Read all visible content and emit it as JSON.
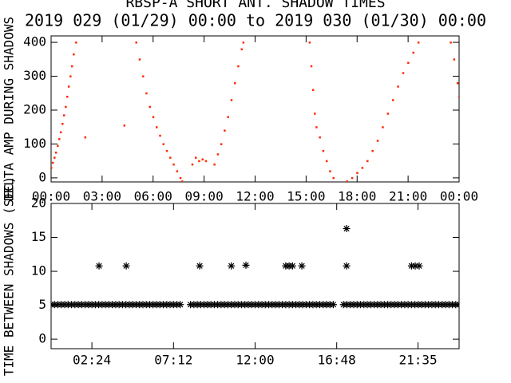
{
  "chart_data": [
    {
      "type": "scatter",
      "marker": "dot",
      "title": "RBSP-A SHORT ANT. SHADOW TIMES",
      "subtitle": "2019 029 (01/29) 00:00 to 2019 030 (01/30) 00:00",
      "ylabel": "DELTA AMP DURING SHADOWS",
      "xlim": [
        0,
        24
      ],
      "ylim": [
        -12,
        419
      ],
      "xticks": [
        {
          "value": 0,
          "label": "00:00"
        },
        {
          "value": 3,
          "label": "03:00"
        },
        {
          "value": 6,
          "label": "06:00"
        },
        {
          "value": 9,
          "label": "09:00"
        },
        {
          "value": 12,
          "label": "12:00"
        },
        {
          "value": 15,
          "label": "15:00"
        },
        {
          "value": 18,
          "label": "18:00"
        },
        {
          "value": 21,
          "label": "21:00"
        },
        {
          "value": 24,
          "label": "00:00"
        }
      ],
      "yticks": [
        0,
        100,
        200,
        300,
        400
      ],
      "series": [
        {
          "color": "#ff2a00",
          "x": [
            0,
            0.09,
            0.19,
            0.28,
            0.38,
            0.47,
            0.56,
            0.66,
            0.75,
            0.85,
            0.94,
            1.03,
            1.13,
            1.22,
            1.32,
            1.46,
            2.0,
            4.3,
            5.0,
            5.2,
            5.4,
            5.6,
            5.8,
            6.0,
            6.2,
            6.4,
            6.6,
            6.8,
            7.0,
            7.2,
            7.4,
            7.6,
            7.7,
            8.3,
            8.5,
            8.7,
            8.9,
            9.1,
            9.6,
            9.8,
            10.0,
            10.2,
            10.4,
            10.6,
            10.8,
            11.0,
            11.2,
            11.3,
            15.2,
            15.3,
            15.4,
            15.5,
            15.6,
            15.8,
            16.0,
            16.2,
            16.4,
            16.6,
            17.4,
            17.7,
            18.0,
            18.3,
            18.6,
            18.9,
            19.2,
            19.5,
            19.8,
            20.1,
            20.4,
            20.7,
            21.0,
            21.3,
            21.6,
            23.5,
            23.7,
            23.9,
            24.0
          ],
          "values": [
            30,
            45,
            60,
            75,
            95,
            115,
            135,
            160,
            185,
            210,
            240,
            270,
            300,
            330,
            365,
            400,
            120,
            155,
            400,
            350,
            300,
            250,
            210,
            180,
            150,
            125,
            100,
            80,
            60,
            40,
            20,
            0,
            -10,
            40,
            60,
            50,
            55,
            50,
            40,
            70,
            100,
            140,
            180,
            230,
            280,
            330,
            380,
            400,
            400,
            330,
            260,
            190,
            150,
            120,
            80,
            50,
            20,
            0,
            -10,
            0,
            15,
            30,
            50,
            80,
            110,
            150,
            190,
            230,
            270,
            310,
            340,
            370,
            400,
            400,
            350,
            280,
            240
          ]
        }
      ]
    },
    {
      "type": "scatter",
      "marker": "asterisk",
      "ylabel": "TIME BETWEEN SHADOWS (SEC)",
      "xlim": [
        0,
        24
      ],
      "ylim": [
        -1.4,
        20
      ],
      "xticks": [
        {
          "value": 2.4,
          "label": "02:24"
        },
        {
          "value": 7.2,
          "label": "07:12"
        },
        {
          "value": 12,
          "label": "12:00"
        },
        {
          "value": 16.8,
          "label": "16:48"
        },
        {
          "value": 21.583,
          "label": "21:35"
        }
      ],
      "yticks": [
        0,
        5,
        10,
        15,
        20
      ],
      "series": [
        {
          "color": "#000000",
          "x": [
            2.82,
            4.42,
            8.74,
            10.6,
            11.46,
            13.8,
            14.0,
            14.2,
            14.75,
            17.38,
            17.38,
            21.2,
            21.42,
            21.65,
            0,
            0.2,
            0.4,
            0.6,
            0.8,
            1.0,
            1.2,
            1.4,
            1.6,
            1.8,
            2.0,
            2.2,
            2.4,
            2.6,
            2.8,
            3.0,
            3.2,
            3.4,
            3.6,
            3.8,
            4.0,
            4.2,
            4.4,
            4.6,
            4.8,
            5.0,
            5.2,
            5.4,
            5.6,
            5.8,
            6.0,
            6.2,
            6.4,
            6.6,
            6.8,
            7.0,
            7.2,
            7.4,
            7.6,
            8.2,
            8.4,
            8.6,
            8.8,
            9.0,
            9.2,
            9.4,
            9.6,
            9.8,
            10.0,
            10.2,
            10.4,
            10.6,
            10.8,
            11.0,
            11.2,
            11.4,
            11.6,
            11.8,
            12.0,
            12.2,
            12.4,
            12.6,
            12.8,
            13.0,
            13.2,
            13.4,
            13.6,
            13.8,
            14.0,
            14.2,
            14.4,
            14.6,
            14.8,
            15.0,
            15.2,
            15.4,
            15.6,
            15.8,
            16.0,
            16.2,
            16.4,
            16.6,
            17.2,
            17.4,
            17.6,
            17.8,
            18.0,
            18.2,
            18.4,
            18.6,
            18.8,
            19.0,
            19.2,
            19.4,
            19.6,
            19.8,
            20.0,
            20.2,
            20.4,
            20.6,
            20.8,
            21.0,
            21.2,
            21.4,
            21.6,
            21.8,
            22.0,
            22.2,
            22.4,
            22.6,
            22.8,
            23.0,
            23.2,
            23.4,
            23.6,
            23.8,
            24.0
          ],
          "values": [
            10.8,
            10.8,
            10.8,
            10.8,
            10.9,
            10.8,
            10.8,
            10.8,
            10.8,
            16.3,
            10.8,
            10.8,
            10.8,
            10.8,
            5.1,
            5.1,
            5.1,
            5.1,
            5.1,
            5.1,
            5.1,
            5.1,
            5.1,
            5.1,
            5.1,
            5.1,
            5.1,
            5.1,
            5.1,
            5.1,
            5.1,
            5.1,
            5.1,
            5.1,
            5.1,
            5.1,
            5.1,
            5.1,
            5.1,
            5.1,
            5.1,
            5.1,
            5.1,
            5.1,
            5.1,
            5.1,
            5.1,
            5.1,
            5.1,
            5.1,
            5.1,
            5.1,
            5.1,
            5.1,
            5.1,
            5.1,
            5.1,
            5.1,
            5.1,
            5.1,
            5.1,
            5.1,
            5.1,
            5.1,
            5.1,
            5.1,
            5.1,
            5.1,
            5.1,
            5.1,
            5.1,
            5.1,
            5.1,
            5.1,
            5.1,
            5.1,
            5.1,
            5.1,
            5.1,
            5.1,
            5.1,
            5.1,
            5.1,
            5.1,
            5.1,
            5.1,
            5.1,
            5.1,
            5.1,
            5.1,
            5.1,
            5.1,
            5.1,
            5.1,
            5.1,
            5.1,
            5.1,
            5.1,
            5.1,
            5.1,
            5.1,
            5.1,
            5.1,
            5.1,
            5.1,
            5.1,
            5.1,
            5.1,
            5.1,
            5.1,
            5.1,
            5.1,
            5.1,
            5.1,
            5.1,
            5.1,
            5.1,
            5.1,
            5.1,
            5.1,
            5.1,
            5.1,
            5.1,
            5.1,
            5.1,
            5.1,
            5.1,
            5.1,
            5.1,
            5.1,
            5.1
          ]
        }
      ]
    }
  ]
}
